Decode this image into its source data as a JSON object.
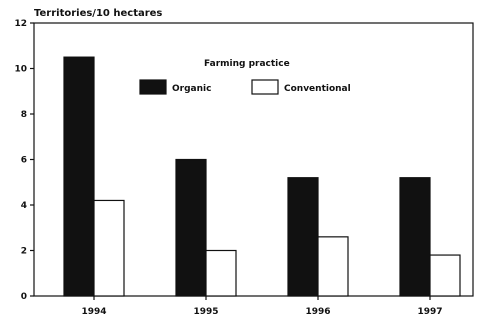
{
  "chart_data": {
    "type": "bar",
    "ylabel": "Territories/10 hectares",
    "categories": [
      "1994",
      "1995",
      "1996",
      "1997"
    ],
    "series": [
      {
        "name": "Organic",
        "values": [
          10.5,
          6.0,
          5.2,
          5.2
        ],
        "color": "#111111"
      },
      {
        "name": "Conventional",
        "values": [
          4.2,
          2.0,
          2.6,
          1.8
        ],
        "color": "#ffffff"
      }
    ],
    "yticks": [
      0,
      2,
      4,
      6,
      8,
      10,
      12
    ],
    "ylim": [
      0,
      12
    ],
    "legend": {
      "title": "Farming practice",
      "placement": "top-right"
    },
    "grid": false
  }
}
